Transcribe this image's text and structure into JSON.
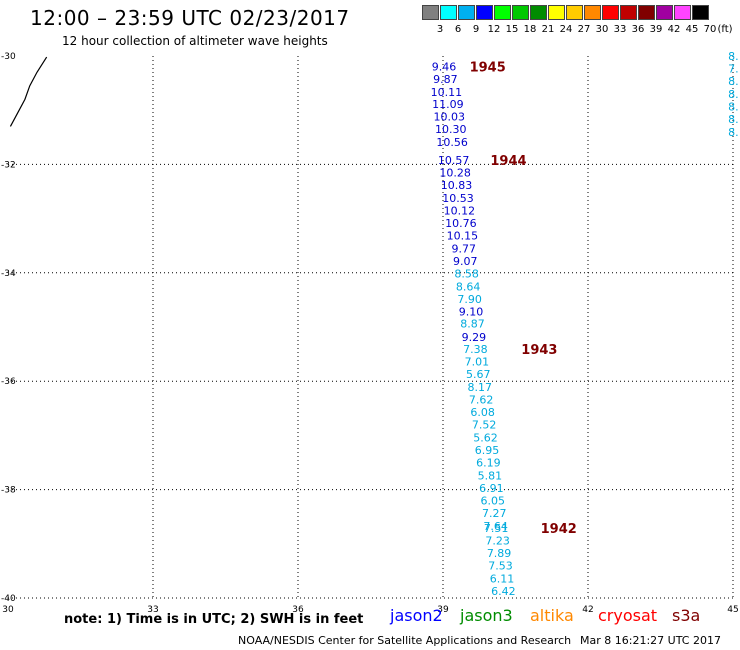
{
  "title": "12:00 – 23:59 UTC 02/23/2017",
  "subtitle": "12 hour collection of altimeter wave heights",
  "legend": {
    "unit": "(ft)",
    "bins": [
      {
        "label": "3",
        "color": "#808080"
      },
      {
        "label": "6",
        "color": "#00ffff"
      },
      {
        "label": "9",
        "color": "#00b0f0"
      },
      {
        "label": "12",
        "color": "#0000ff"
      },
      {
        "label": "15",
        "color": "#00ff00"
      },
      {
        "label": "18",
        "color": "#00c800"
      },
      {
        "label": "21",
        "color": "#008c00"
      },
      {
        "label": "24",
        "color": "#ffff00"
      },
      {
        "label": "27",
        "color": "#ffcc00"
      },
      {
        "label": "30",
        "color": "#ff8800"
      },
      {
        "label": "33",
        "color": "#ff0000"
      },
      {
        "label": "36",
        "color": "#c00000"
      },
      {
        "label": "39",
        "color": "#800000"
      },
      {
        "label": "42",
        "color": "#a000a0"
      },
      {
        "label": "45",
        "color": "#ff44ff"
      },
      {
        "label": "70",
        "color": "#000000"
      }
    ]
  },
  "note": "note: 1) Time is in UTC; 2) SWH is in feet",
  "satellites": [
    {
      "name": "jason2",
      "color": "#0000ff"
    },
    {
      "name": "jason3",
      "color": "#008c00"
    },
    {
      "name": "altika",
      "color": "#ff8800"
    },
    {
      "name": "cryosat",
      "color": "#ff0000"
    },
    {
      "name": "s3a",
      "color": "#800000"
    }
  ],
  "credit": "NOAA/NESDIS Center for Satellite Applications and Research",
  "timestamp": "Mar  8 16:21:27 UTC 2017",
  "colors": {
    "blue": "#0000cc",
    "cyan": "#00aadd",
    "time": "#800000"
  },
  "chart_data": {
    "type": "scatter",
    "xlim": [
      30,
      45
    ],
    "ylim": [
      -40,
      -30
    ],
    "xticks": [
      30,
      33,
      36,
      39,
      42,
      45
    ],
    "yticks": [
      -30,
      -32,
      -34,
      -36,
      -38,
      -40
    ],
    "grid": true,
    "points": [
      {
        "x": 39.02,
        "y": -30.19,
        "value": "9.46",
        "color": "blue"
      },
      {
        "x": 39.05,
        "y": -30.42,
        "value": "9.87",
        "color": "blue"
      },
      {
        "x": 39.07,
        "y": -30.66,
        "value": "10.11",
        "color": "blue"
      },
      {
        "x": 39.1,
        "y": -30.89,
        "value": "11.09",
        "color": "blue"
      },
      {
        "x": 39.13,
        "y": -31.12,
        "value": "10.03",
        "color": "blue"
      },
      {
        "x": 39.16,
        "y": -31.35,
        "value": "10.30",
        "color": "blue"
      },
      {
        "x": 39.19,
        "y": -31.59,
        "value": "10.56",
        "color": "blue"
      },
      {
        "x": 39.22,
        "y": -31.92,
        "value": "10.57",
        "color": "blue"
      },
      {
        "x": 39.25,
        "y": -32.15,
        "value": "10.28",
        "color": "blue"
      },
      {
        "x": 39.28,
        "y": -32.38,
        "value": "10.83",
        "color": "blue"
      },
      {
        "x": 39.31,
        "y": -32.62,
        "value": "10.53",
        "color": "blue"
      },
      {
        "x": 39.34,
        "y": -32.85,
        "value": "10.12",
        "color": "blue"
      },
      {
        "x": 39.37,
        "y": -33.08,
        "value": "10.76",
        "color": "blue"
      },
      {
        "x": 39.4,
        "y": -33.31,
        "value": "10.15",
        "color": "blue"
      },
      {
        "x": 39.43,
        "y": -33.55,
        "value": "9.77",
        "color": "blue"
      },
      {
        "x": 39.46,
        "y": -33.78,
        "value": "9.07",
        "color": "blue"
      },
      {
        "x": 39.49,
        "y": -34.01,
        "value": "8.58",
        "color": "cyan"
      },
      {
        "x": 39.52,
        "y": -34.25,
        "value": "8.64",
        "color": "cyan"
      },
      {
        "x": 39.55,
        "y": -34.48,
        "value": "7.90",
        "color": "cyan"
      },
      {
        "x": 39.58,
        "y": -34.71,
        "value": "9.10",
        "color": "blue"
      },
      {
        "x": 39.61,
        "y": -34.94,
        "value": "8.87",
        "color": "cyan"
      },
      {
        "x": 39.64,
        "y": -35.18,
        "value": "9.29",
        "color": "blue"
      },
      {
        "x": 39.67,
        "y": -35.41,
        "value": "7.38",
        "color": "cyan"
      },
      {
        "x": 39.7,
        "y": -35.64,
        "value": "7.01",
        "color": "cyan"
      },
      {
        "x": 39.73,
        "y": -35.87,
        "value": "5.67",
        "color": "cyan"
      },
      {
        "x": 39.76,
        "y": -36.11,
        "value": "8.17",
        "color": "cyan"
      },
      {
        "x": 39.79,
        "y": -36.34,
        "value": "7.62",
        "color": "cyan"
      },
      {
        "x": 39.82,
        "y": -36.57,
        "value": "6.08",
        "color": "cyan"
      },
      {
        "x": 39.85,
        "y": -36.8,
        "value": "7.52",
        "color": "cyan"
      },
      {
        "x": 39.88,
        "y": -37.04,
        "value": "5.62",
        "color": "cyan"
      },
      {
        "x": 39.91,
        "y": -37.27,
        "value": "6.95",
        "color": "cyan"
      },
      {
        "x": 39.94,
        "y": -37.5,
        "value": "6.19",
        "color": "cyan"
      },
      {
        "x": 39.97,
        "y": -37.74,
        "value": "5.81",
        "color": "cyan"
      },
      {
        "x": 40.0,
        "y": -37.97,
        "value": "6.91",
        "color": "cyan"
      },
      {
        "x": 40.03,
        "y": -38.2,
        "value": "6.05",
        "color": "cyan"
      },
      {
        "x": 40.06,
        "y": -38.43,
        "value": "7.27",
        "color": "cyan"
      },
      {
        "x": 40.09,
        "y": -38.67,
        "value": "7.64",
        "color": "cyan"
      },
      {
        "x": 40.1,
        "y": -38.71,
        "value": "7.51",
        "color": "cyan"
      },
      {
        "x": 40.13,
        "y": -38.94,
        "value": "7.23",
        "color": "cyan"
      },
      {
        "x": 40.16,
        "y": -39.17,
        "value": "7.89",
        "color": "cyan"
      },
      {
        "x": 40.19,
        "y": -39.4,
        "value": "7.53",
        "color": "cyan"
      },
      {
        "x": 40.22,
        "y": -39.64,
        "value": "6.11",
        "color": "cyan"
      },
      {
        "x": 40.25,
        "y": -39.87,
        "value": "6.42",
        "color": "cyan"
      }
    ],
    "time_labels": [
      {
        "x": 39.55,
        "y": -30.19,
        "label": "1945"
      },
      {
        "x": 39.98,
        "y": -31.92,
        "label": "1944"
      },
      {
        "x": 40.62,
        "y": -35.41,
        "label": "1943"
      },
      {
        "x": 41.02,
        "y": -38.71,
        "label": "1942"
      }
    ],
    "edge_track": {
      "x": 44.9,
      "y": [
        -30.0,
        -30.23,
        -30.46,
        -30.7,
        -30.93,
        -31.16,
        -31.4
      ],
      "values": [
        "8.",
        "7.",
        "8.",
        "8.",
        "8.",
        "8.",
        "8."
      ],
      "color": "cyan"
    },
    "coast": [
      [
        30.05,
        -31.3
      ],
      [
        30.2,
        -31.05
      ],
      [
        30.35,
        -30.8
      ],
      [
        30.45,
        -30.55
      ],
      [
        30.6,
        -30.3
      ],
      [
        30.8,
        -30.02
      ]
    ]
  }
}
